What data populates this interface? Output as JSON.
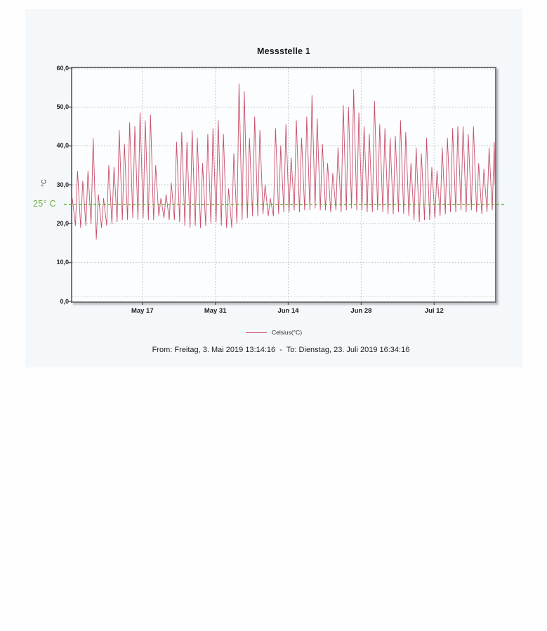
{
  "chart": {
    "title": "Messstelle 1",
    "y_unit_label": "°C",
    "reference_label": "25° C",
    "reference_color": "#6fae3e",
    "legend_label": "Celsius(°C)",
    "legend_color": "#cb4f66",
    "footer": "From: Freitag, 3. Mai 2019 13:14:16  -  To: Dienstag, 23. Juli 2019 16:34:16"
  },
  "chart_data": {
    "type": "line",
    "title": "Messstelle 1",
    "xlabel": "",
    "ylabel": "°C",
    "ylim": [
      0,
      60
    ],
    "x_range_days": 81.14,
    "time_start": "Freitag, 3. Mai 2019 13:14:16",
    "time_end": "Dienstag, 23. Juli 2019 16:34:16",
    "grid": true,
    "legend_position": "bottom-center",
    "y_ticks": [
      {
        "value": 0,
        "label": "0,0"
      },
      {
        "value": 10,
        "label": "10,0"
      },
      {
        "value": 20,
        "label": "20,0"
      },
      {
        "value": 30,
        "label": "30,0"
      },
      {
        "value": 40,
        "label": "40,0"
      },
      {
        "value": 50,
        "label": "50,0"
      },
      {
        "value": 60,
        "label": "60,0"
      }
    ],
    "x_ticks": [
      {
        "label": "May 17",
        "day": 13.45
      },
      {
        "label": "May 31",
        "day": 27.45
      },
      {
        "label": "Jun 14",
        "day": 41.45
      },
      {
        "label": "Jun 28",
        "day": 55.45
      },
      {
        "label": "Jul 12",
        "day": 69.45
      }
    ],
    "reference_line": {
      "value": 25,
      "label": "25° C",
      "color": "#6fae3e",
      "style": "dashed"
    },
    "series": [
      {
        "name": "Celsius(°C)",
        "color": "#c8506a",
        "start_value": 26.5,
        "end_value": 30,
        "daily_low_high": [
          [
            19.5,
            33.5
          ],
          [
            19,
            31
          ],
          [
            19.5,
            33.5
          ],
          [
            20,
            42
          ],
          [
            16,
            27.5
          ],
          [
            19,
            26.5
          ],
          [
            19.5,
            35
          ],
          [
            20,
            34.5
          ],
          [
            20.5,
            44
          ],
          [
            21,
            40.5
          ],
          [
            21,
            46
          ],
          [
            21.5,
            45
          ],
          [
            21,
            48.5
          ],
          [
            21.5,
            46.5
          ],
          [
            21,
            48
          ],
          [
            21,
            35
          ],
          [
            22,
            26.5
          ],
          [
            21.5,
            27.5
          ],
          [
            21,
            30.5
          ],
          [
            21,
            41
          ],
          [
            20.5,
            43.5
          ],
          [
            19.5,
            41
          ],
          [
            19,
            44
          ],
          [
            19.5,
            42
          ],
          [
            19,
            35.5
          ],
          [
            19.5,
            43
          ],
          [
            20,
            44.5
          ],
          [
            20.5,
            46.5
          ],
          [
            19.5,
            43
          ],
          [
            19,
            29
          ],
          [
            19,
            38
          ],
          [
            20,
            56
          ],
          [
            21,
            54
          ],
          [
            21.5,
            42
          ],
          [
            22,
            47.5
          ],
          [
            22,
            44
          ],
          [
            22.5,
            30
          ],
          [
            22,
            26.5
          ],
          [
            22,
            44.5
          ],
          [
            22.5,
            40
          ],
          [
            23,
            45.5
          ],
          [
            23,
            37
          ],
          [
            23.5,
            46.5
          ],
          [
            23,
            42
          ],
          [
            23.5,
            47.5
          ],
          [
            23.5,
            53
          ],
          [
            24,
            47
          ],
          [
            23.5,
            40.5
          ],
          [
            23.5,
            35.5
          ],
          [
            23,
            33
          ],
          [
            23.5,
            39.5
          ],
          [
            23,
            50.5
          ],
          [
            23.5,
            50
          ],
          [
            24,
            54.5
          ],
          [
            23.5,
            48.5
          ],
          [
            23.5,
            45
          ],
          [
            23,
            43
          ],
          [
            23,
            51.5
          ],
          [
            23.5,
            45.5
          ],
          [
            23,
            44.5
          ],
          [
            22.5,
            42
          ],
          [
            22.5,
            42.5
          ],
          [
            23,
            46.5
          ],
          [
            22.5,
            43.5
          ],
          [
            22,
            35.5
          ],
          [
            21,
            39.5
          ],
          [
            20.5,
            38
          ],
          [
            21,
            42
          ],
          [
            21,
            34.5
          ],
          [
            21.5,
            33.5
          ],
          [
            22,
            39.5
          ],
          [
            22.5,
            42
          ],
          [
            23,
            44.5
          ],
          [
            23,
            45
          ],
          [
            23.5,
            45
          ],
          [
            23,
            43
          ],
          [
            23.5,
            45
          ],
          [
            23,
            35.5
          ],
          [
            22.5,
            34
          ],
          [
            23,
            39.5
          ],
          [
            23.5,
            41
          ]
        ]
      }
    ]
  }
}
